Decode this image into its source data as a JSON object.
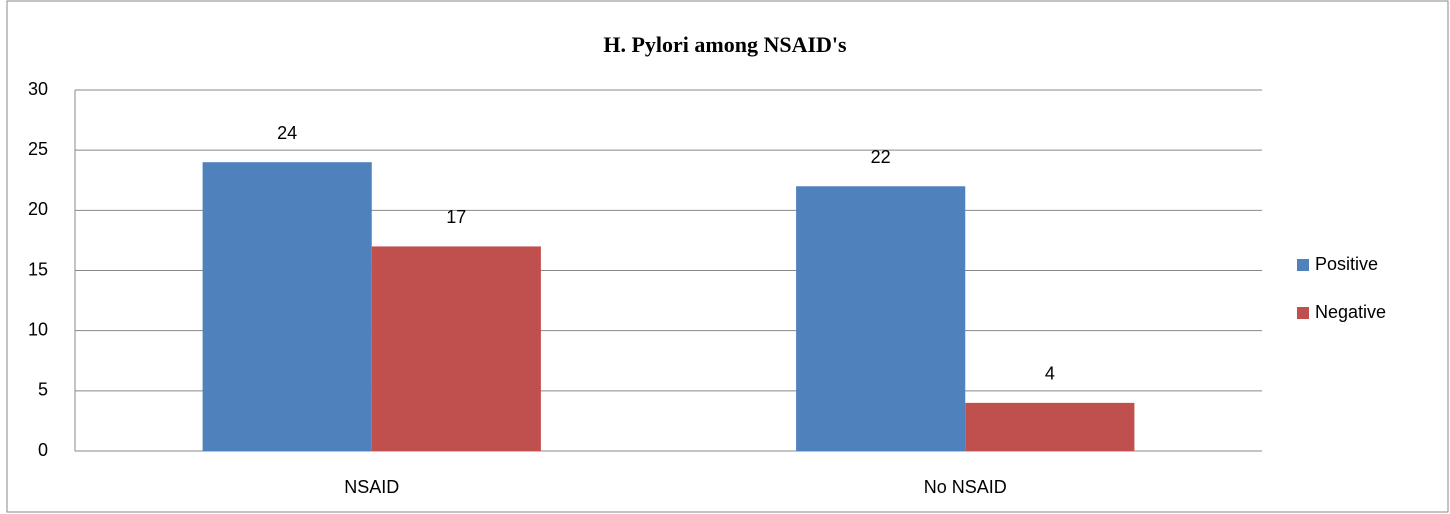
{
  "chart_data": {
    "type": "bar",
    "title": "H. Pylori among NSAID's",
    "categories": [
      "NSAID",
      "No NSAID"
    ],
    "series": [
      {
        "name": "Positive",
        "color": "#4f81bd",
        "values": [
          24,
          22
        ]
      },
      {
        "name": "Negative",
        "color": "#c0504d",
        "values": [
          17,
          4
        ]
      }
    ],
    "ylim": [
      0,
      30
    ],
    "yticks": [
      0,
      5,
      10,
      15,
      20,
      25,
      30
    ],
    "grid": true,
    "legend": "right"
  }
}
